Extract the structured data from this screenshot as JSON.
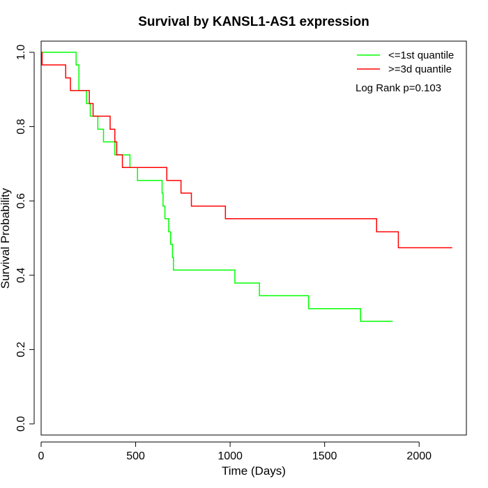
{
  "chart_data": {
    "type": "line",
    "title": "Survival by KANSL1-AS1 expression",
    "xlabel": "Time (Days)",
    "ylabel": "Survival Probability",
    "xlim": [
      0,
      2250
    ],
    "ylim": [
      -0.03,
      1.03
    ],
    "xticks": [
      0,
      500,
      1000,
      1500,
      2000
    ],
    "xtick_labels": [
      "0",
      "500",
      "1000",
      "1500",
      "2000"
    ],
    "yticks": [
      0.0,
      0.2,
      0.4,
      0.6,
      0.8,
      1.0
    ],
    "ytick_labels": [
      "0.0",
      "0.2",
      "0.4",
      "0.6",
      "0.8",
      "1.0"
    ],
    "grid": false,
    "legend_position": "top-right",
    "annotation": "Log Rank p=0.103",
    "series": [
      {
        "name": "<=1st quantile",
        "color": "#00ff00",
        "step": true,
        "x": [
          0,
          185,
          200,
          240,
          260,
          300,
          330,
          390,
          470,
          510,
          640,
          645,
          655,
          675,
          685,
          695,
          700,
          1025,
          1155,
          1415,
          1690,
          1860
        ],
        "y": [
          1.0,
          0.966,
          0.897,
          0.862,
          0.828,
          0.793,
          0.759,
          0.724,
          0.69,
          0.655,
          0.621,
          0.586,
          0.552,
          0.517,
          0.483,
          0.448,
          0.414,
          0.379,
          0.345,
          0.31,
          0.276,
          0.276
        ]
      },
      {
        "name": ">=3d quantile",
        "color": "#ff0000",
        "step": true,
        "x": [
          0,
          5,
          130,
          155,
          255,
          275,
          365,
          390,
          400,
          430,
          665,
          740,
          795,
          975,
          1775,
          1890,
          2175
        ],
        "y": [
          1.0,
          0.966,
          0.931,
          0.897,
          0.862,
          0.828,
          0.793,
          0.759,
          0.724,
          0.69,
          0.655,
          0.621,
          0.586,
          0.552,
          0.517,
          0.474,
          0.474
        ]
      }
    ]
  }
}
